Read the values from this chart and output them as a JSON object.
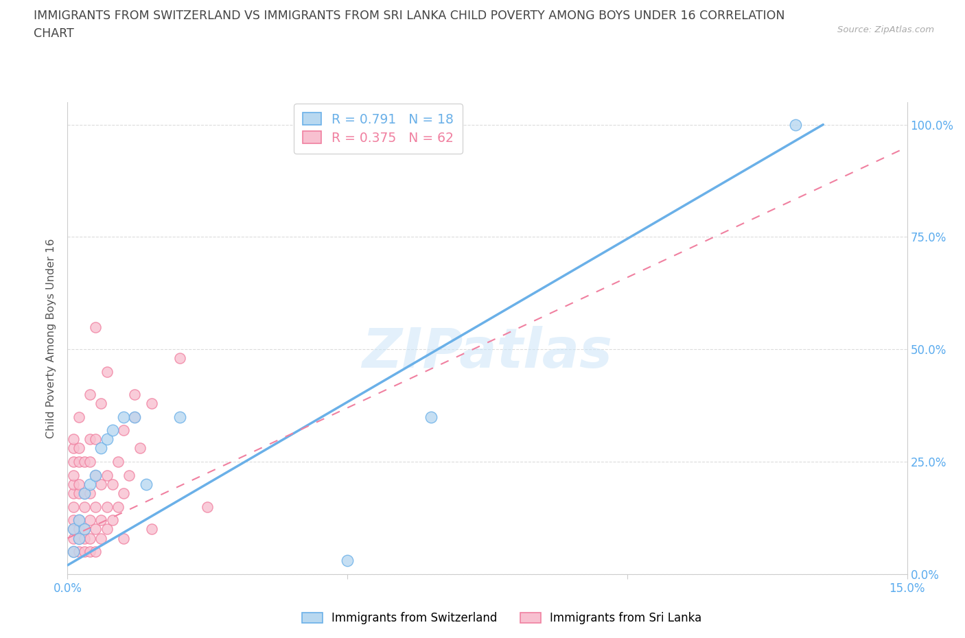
{
  "title_line1": "IMMIGRANTS FROM SWITZERLAND VS IMMIGRANTS FROM SRI LANKA CHILD POVERTY AMONG BOYS UNDER 16 CORRELATION",
  "title_line2": "CHART",
  "source": "Source: ZipAtlas.com",
  "ylabel": "Child Poverty Among Boys Under 16",
  "xlim": [
    0.0,
    0.15
  ],
  "ylim": [
    0.0,
    1.05
  ],
  "ytick_vals": [
    0.0,
    0.25,
    0.5,
    0.75,
    1.0
  ],
  "ytick_labels": [
    "0.0%",
    "25.0%",
    "50.0%",
    "75.0%",
    "100.0%"
  ],
  "xtick_vals": [
    0.0,
    0.05,
    0.1,
    0.15
  ],
  "xtick_labels": [
    "0.0%",
    "",
    "",
    "15.0%"
  ],
  "swiss_R": "0.791",
  "swiss_N": "18",
  "srilanka_R": "0.375",
  "srilanka_N": "62",
  "swiss_color": "#6ab0e8",
  "srilanka_color": "#f080a0",
  "swiss_fill": "#b8d8f0",
  "srilanka_fill": "#f8c0d0",
  "legend_swiss": "R = 0.791   N = 18",
  "legend_srilanka": "R = 0.375   N = 62",
  "swiss_line_x": [
    0.0,
    0.135
  ],
  "swiss_line_y": [
    0.02,
    1.0
  ],
  "srilanka_line_x": [
    0.0,
    0.15
  ],
  "srilanka_line_y": [
    0.08,
    0.95
  ],
  "swiss_scatter_x": [
    0.001,
    0.001,
    0.002,
    0.002,
    0.003,
    0.003,
    0.004,
    0.005,
    0.006,
    0.007,
    0.008,
    0.01,
    0.012,
    0.014,
    0.02,
    0.05,
    0.065,
    0.13
  ],
  "swiss_scatter_y": [
    0.05,
    0.1,
    0.08,
    0.12,
    0.1,
    0.18,
    0.2,
    0.22,
    0.28,
    0.3,
    0.32,
    0.35,
    0.35,
    0.2,
    0.35,
    0.03,
    0.35,
    1.0
  ],
  "srilanka_scatter_x": [
    0.001,
    0.001,
    0.001,
    0.001,
    0.001,
    0.001,
    0.001,
    0.001,
    0.001,
    0.001,
    0.001,
    0.002,
    0.002,
    0.002,
    0.002,
    0.002,
    0.002,
    0.002,
    0.002,
    0.002,
    0.003,
    0.003,
    0.003,
    0.003,
    0.003,
    0.003,
    0.004,
    0.004,
    0.004,
    0.004,
    0.004,
    0.004,
    0.004,
    0.005,
    0.005,
    0.005,
    0.005,
    0.005,
    0.005,
    0.006,
    0.006,
    0.006,
    0.006,
    0.007,
    0.007,
    0.007,
    0.007,
    0.008,
    0.008,
    0.009,
    0.009,
    0.01,
    0.01,
    0.01,
    0.011,
    0.012,
    0.012,
    0.013,
    0.015,
    0.015,
    0.02,
    0.025
  ],
  "srilanka_scatter_y": [
    0.05,
    0.08,
    0.1,
    0.12,
    0.15,
    0.18,
    0.2,
    0.22,
    0.25,
    0.28,
    0.3,
    0.05,
    0.08,
    0.1,
    0.12,
    0.18,
    0.2,
    0.25,
    0.28,
    0.35,
    0.05,
    0.08,
    0.1,
    0.15,
    0.18,
    0.25,
    0.05,
    0.08,
    0.12,
    0.18,
    0.25,
    0.3,
    0.4,
    0.05,
    0.1,
    0.15,
    0.22,
    0.3,
    0.55,
    0.08,
    0.12,
    0.2,
    0.38,
    0.1,
    0.15,
    0.22,
    0.45,
    0.12,
    0.2,
    0.15,
    0.25,
    0.08,
    0.18,
    0.32,
    0.22,
    0.35,
    0.4,
    0.28,
    0.1,
    0.38,
    0.48,
    0.15
  ],
  "background_color": "#ffffff",
  "grid_color": "#d8d8d8",
  "title_color": "#444444",
  "axis_color": "#5aabee",
  "axis_label_color": "#555555",
  "legend_x_label_swiss": "Immigrants from Switzerland",
  "legend_x_label_srilanka": "Immigrants from Sri Lanka"
}
